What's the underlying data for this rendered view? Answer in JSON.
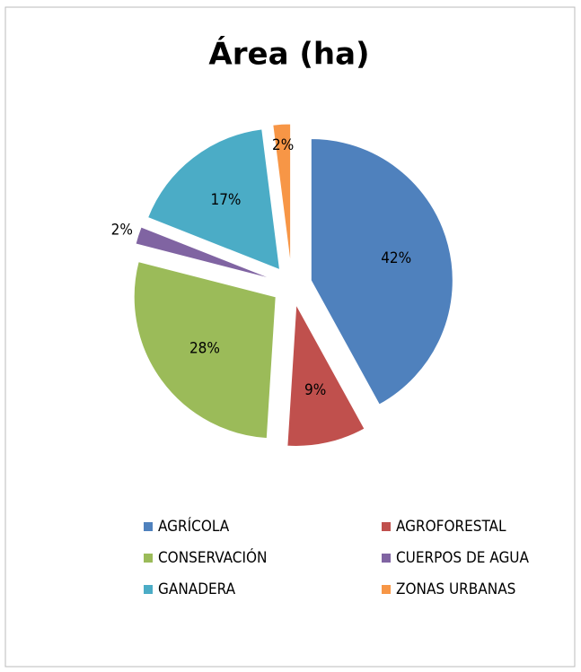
{
  "chart_data": {
    "type": "pie",
    "title": "Área (ha)",
    "categories": [
      "AGRÍCOLA",
      "AGROFORESTAL",
      "CONSERVACIÓN",
      "CUERPOS DE AGUA",
      "GANADERA",
      "ZONAS URBANAS"
    ],
    "values": [
      42,
      9,
      28,
      2,
      17,
      2
    ],
    "value_labels": [
      "42%",
      "9%",
      "28%",
      "2%",
      "17%",
      "2%"
    ],
    "colors": [
      "#4f81bd",
      "#c0504d",
      "#9bbb59",
      "#8064a2",
      "#4bacc6",
      "#f79646"
    ],
    "legend": "bottom"
  }
}
